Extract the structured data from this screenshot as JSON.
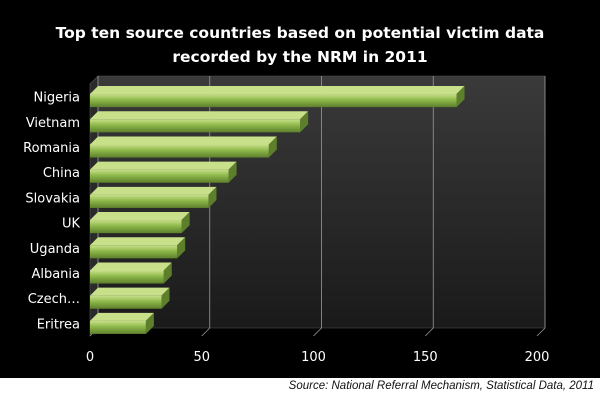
{
  "chart_data": {
    "type": "bar",
    "orientation": "horizontal",
    "title_lines": [
      "Top ten source countries based on potential victim data",
      "recorded by the NRM in 2011"
    ],
    "categories": [
      "Nigeria",
      "Vietnam",
      "Romania",
      "China",
      "Slovakia",
      "UK",
      "Uganda",
      "Albania",
      "Czech…",
      "Eritrea"
    ],
    "values": [
      164,
      94,
      80,
      62,
      53,
      41,
      39,
      33,
      32,
      25
    ],
    "xlim": [
      0,
      200
    ],
    "xticks": [
      "0",
      "50",
      "100",
      "150",
      "200"
    ],
    "grid": true,
    "legend": false,
    "colors": {
      "background": "#000000",
      "bar": "#8db84a",
      "bar_highlight": "#c8e08a",
      "bar_shadow": "#5d7f2c",
      "text": "#ffffff",
      "grid": "#9a9a9a"
    }
  },
  "source_note": "Source: National Referral Mechanism, Statistical Data, 2011"
}
